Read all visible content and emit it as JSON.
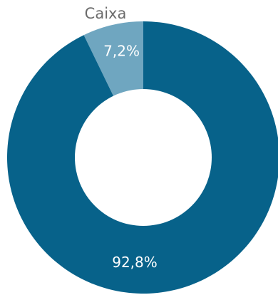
{
  "chart_data": {
    "type": "pie",
    "variant": "donut",
    "categories": [
      "Caixa",
      ""
    ],
    "values": [
      7.2,
      92.8
    ],
    "value_labels": [
      "7,2%",
      "92,8%"
    ],
    "colors": [
      "#6fa6c0",
      "#07628a"
    ],
    "category_label_shown": "Caixa",
    "legend": "none",
    "title": ""
  }
}
